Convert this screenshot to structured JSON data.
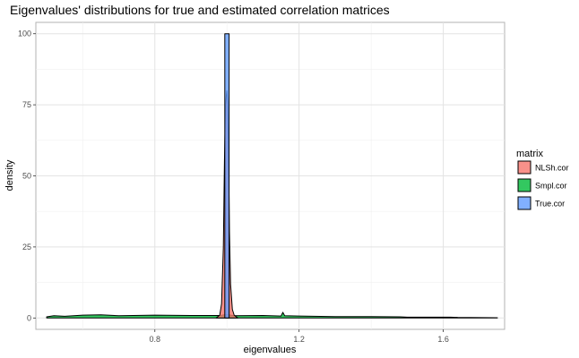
{
  "chart_data": {
    "type": "area",
    "title": "Eigenvalues' distributions for true and estimated correlation matrices",
    "xlabel": "eigenvalues",
    "ylabel": "density",
    "xlim": [
      0.47,
      1.77
    ],
    "ylim": [
      -4,
      104
    ],
    "x_ticks": [
      0.8,
      1.2,
      1.6
    ],
    "x_tick_labels": [
      "0.8",
      "1.2",
      "1.6"
    ],
    "x_minor_ticks": [
      0.6,
      1.0,
      1.4
    ],
    "y_ticks": [
      0,
      25,
      50,
      75,
      100
    ],
    "y_tick_labels": [
      "0",
      "25",
      "50",
      "75",
      "100"
    ],
    "grid": true,
    "legend": {
      "title": "matrix",
      "position": "right",
      "entries": [
        {
          "label": "NLSh.cor",
          "color": "#F8766D"
        },
        {
          "label": "Smpl.cor",
          "color": "#00BA38"
        },
        {
          "label": "True.cor",
          "color": "#619CFF"
        }
      ]
    },
    "series": [
      {
        "name": "Smpl.cor",
        "color": "#00BA38",
        "x": [
          0.5,
          0.52,
          0.55,
          0.6,
          0.65,
          0.7,
          0.8,
          0.9,
          0.98,
          1.0,
          1.02,
          1.1,
          1.15,
          1.155,
          1.16,
          1.2,
          1.3,
          1.4,
          1.48,
          1.5,
          1.62,
          1.64,
          1.75
        ],
        "y": [
          0.4,
          0.8,
          0.6,
          1.0,
          1.1,
          0.8,
          1.0,
          0.9,
          0.9,
          1.2,
          0.8,
          0.9,
          0.7,
          2.0,
          0.8,
          0.7,
          0.5,
          0.5,
          0.4,
          0.3,
          0.3,
          0.2,
          0.1
        ]
      },
      {
        "name": "NLSh.cor",
        "color": "#F8766D",
        "x": [
          0.97,
          0.98,
          0.985,
          0.99,
          0.993,
          0.996,
          0.998,
          1.0,
          1.002,
          1.004,
          1.007,
          1.01,
          1.015,
          1.02,
          1.03
        ],
        "y": [
          0,
          1,
          5,
          25,
          55,
          75,
          78,
          80,
          76,
          60,
          30,
          12,
          3,
          1,
          0
        ]
      },
      {
        "name": "True.cor",
        "color": "#619CFF",
        "x": [
          0.994,
          0.994,
          1.006,
          1.006
        ],
        "y": [
          0,
          100,
          100,
          0
        ]
      }
    ]
  }
}
